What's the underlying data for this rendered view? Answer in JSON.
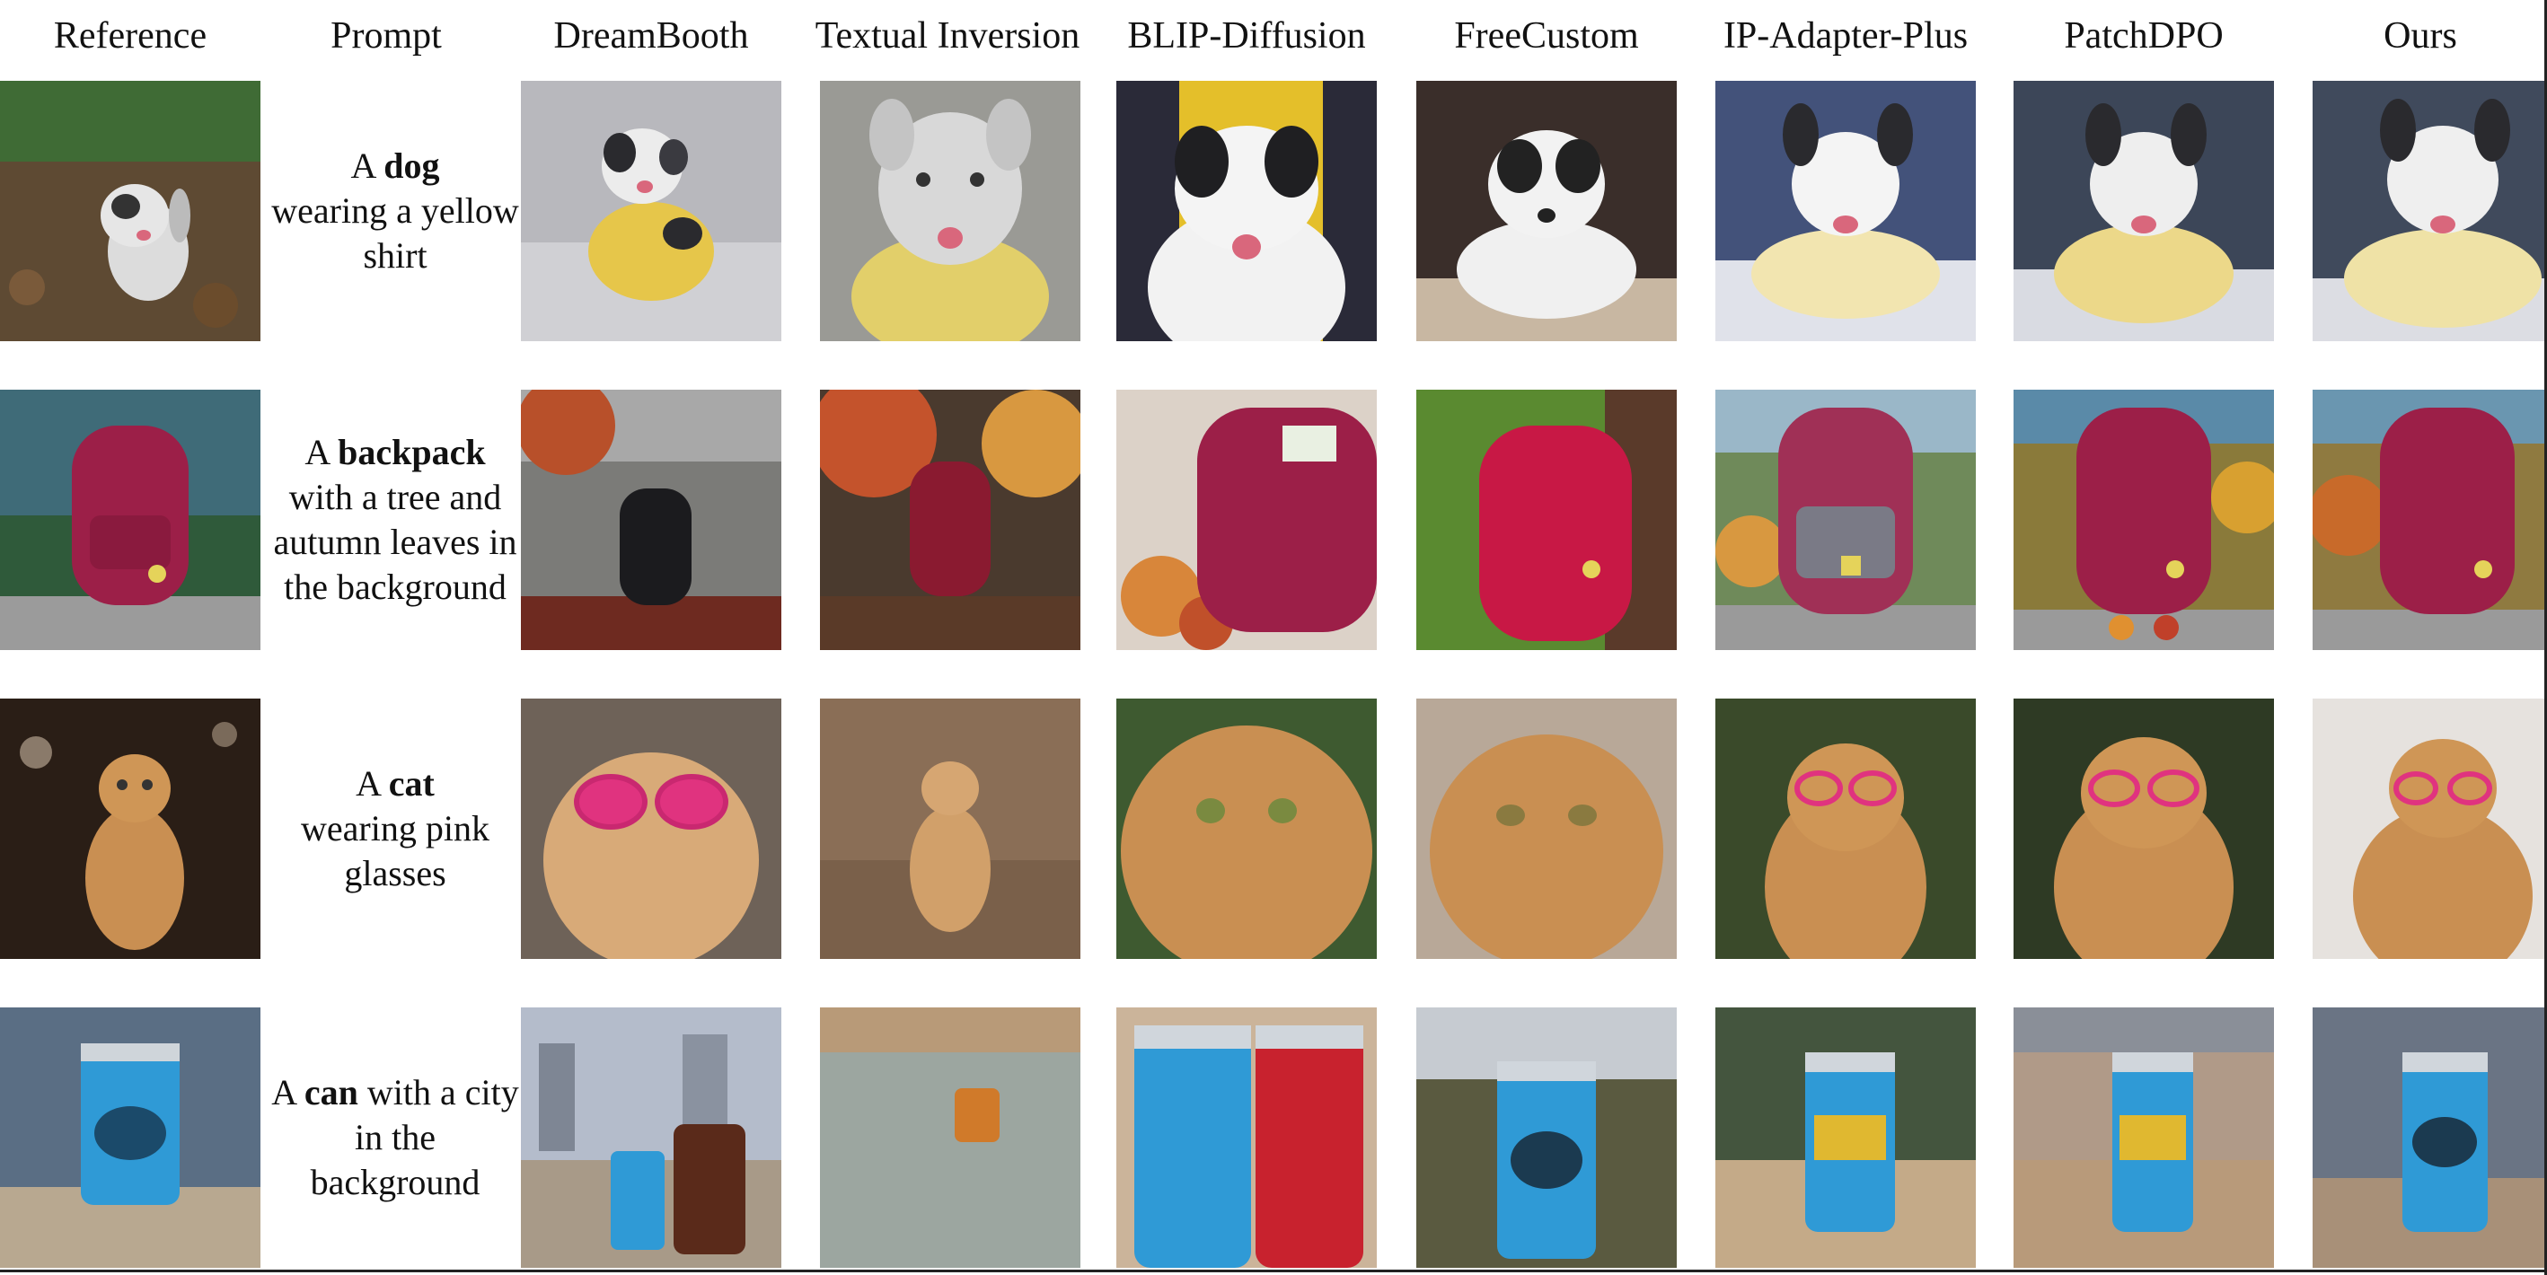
{
  "headers": {
    "reference": "Reference",
    "prompt": "Prompt",
    "dreambooth": "DreamBooth",
    "textual_inversion": "Textual Inversion",
    "blip_diffusion": "BLIP-Diffusion",
    "freecustom": "FreeCustom",
    "ip_adapter_plus": "IP-Adapter-Plus",
    "patchdpo": "PatchDPO",
    "ours": "Ours"
  },
  "rows": [
    {
      "pre": "A ",
      "subject": "dog",
      "post": "wearing a yellow shirt"
    },
    {
      "pre": "A ",
      "subject": "backpack",
      "post": "with a tree and autumn leaves in the background"
    },
    {
      "pre": "A ",
      "subject": "cat",
      "post": "wearing pink glasses"
    },
    {
      "pre": "A ",
      "subject": "can",
      "post": " with a city in the background"
    }
  ],
  "colors": {
    "dog_fur": "#e9e9ea",
    "dog_dark": "#2a2a2e",
    "yellow_shirt": "#e6c64a",
    "backpack": "#9c1f48",
    "autumn": "#b8502a",
    "cat": "#c98f52",
    "pink_glasses": "#e0337f",
    "can_blue": "#2f9ad6",
    "can_red": "#c8222e"
  }
}
